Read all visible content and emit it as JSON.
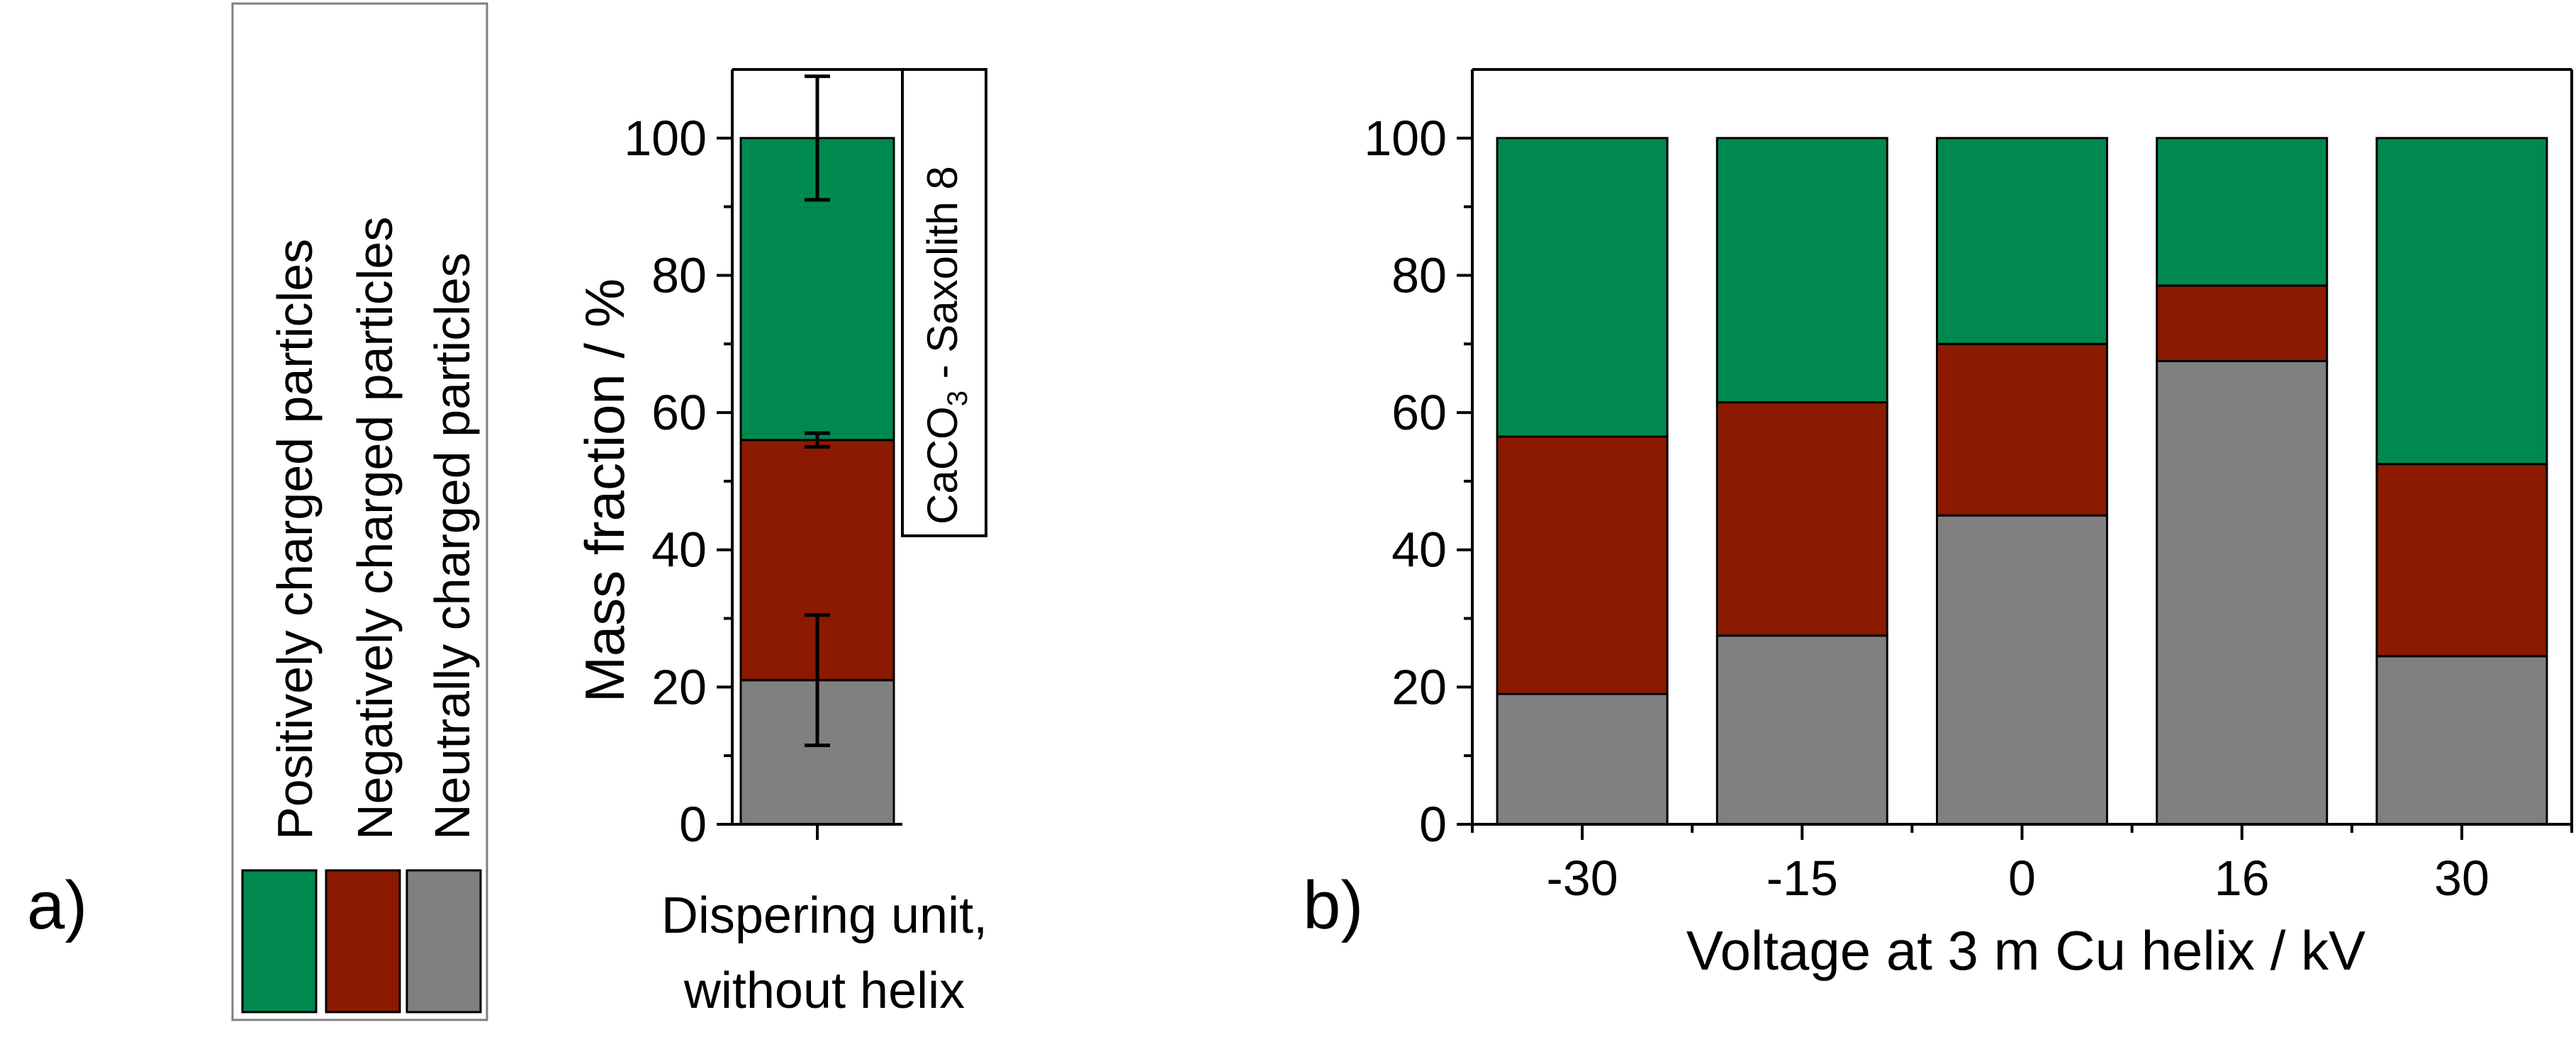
{
  "panel_labels": {
    "a": "a)",
    "b": "b)"
  },
  "colors": {
    "positive": "#00894f",
    "negative": "#8b1a00",
    "neutral": "#808080"
  },
  "legend": {
    "items": [
      {
        "key": "positive",
        "label": "Positively charged particles"
      },
      {
        "key": "negative",
        "label": "Negatively charged particles"
      },
      {
        "key": "neutral",
        "label": "Neutrally charged particles"
      }
    ]
  },
  "chart_data": [
    {
      "id": "panel-a",
      "type": "bar",
      "stacked": true,
      "title": "",
      "xlabel": "",
      "ylabel": "Mass fraction / %",
      "ylim": [
        0,
        110
      ],
      "yticks": [
        0,
        20,
        40,
        60,
        80,
        100
      ],
      "categories": [
        "Dispering unit,\nwithout helix"
      ],
      "category_lines": [
        "Dispering unit,",
        "without helix"
      ],
      "series": [
        {
          "name": "Neutrally charged particles",
          "key": "neutral",
          "values": [
            21
          ]
        },
        {
          "name": "Negatively charged particles",
          "key": "negative",
          "values": [
            35
          ]
        },
        {
          "name": "Positively charged particles",
          "key": "positive",
          "values": [
            44
          ]
        }
      ],
      "error_bars": [
        {
          "at": 21,
          "low": 11.5,
          "high": 30.5
        },
        {
          "at": 56,
          "low": 55,
          "high": 57
        },
        {
          "at": 100,
          "low": 91,
          "high": 109
        }
      ],
      "annotation": {
        "prefix": "CaCO",
        "subscript": "3",
        "suffix": " - Saxolith 8"
      }
    },
    {
      "id": "panel-b",
      "type": "bar",
      "stacked": true,
      "title": "",
      "xlabel": "Voltage at 3 m Cu helix / kV",
      "ylabel": "",
      "ylim": [
        0,
        110
      ],
      "yticks": [
        0,
        20,
        40,
        60,
        80,
        100
      ],
      "categories": [
        "-30",
        "-15",
        "0",
        "16",
        "30"
      ],
      "series": [
        {
          "name": "Neutrally charged particles",
          "key": "neutral",
          "values": [
            19,
            27.5,
            45,
            67.5,
            24.5
          ]
        },
        {
          "name": "Negatively charged particles",
          "key": "negative",
          "values": [
            37.5,
            34,
            25,
            11,
            28
          ]
        },
        {
          "name": "Positively charged particles",
          "key": "positive",
          "values": [
            43.5,
            38.5,
            30,
            21.5,
            47.5
          ]
        }
      ]
    }
  ]
}
